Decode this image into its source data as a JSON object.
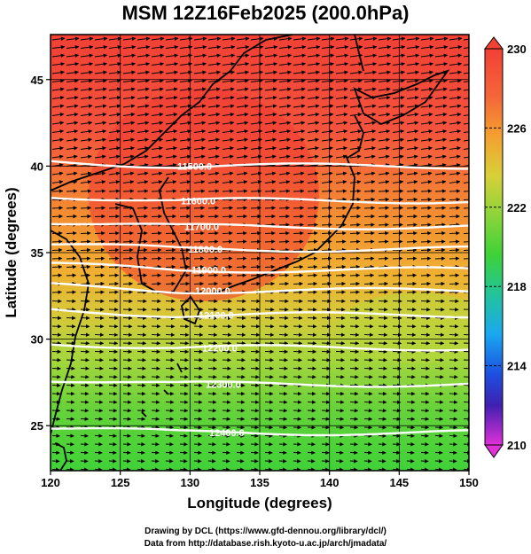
{
  "title": "MSM 12Z16Feb2025 (200.0hPa)",
  "chart_data": {
    "type": "heatmap",
    "xlabel": "Longitude (degrees)",
    "ylabel": "Latitude  (degrees)",
    "xlim": [
      120,
      150
    ],
    "ylim": [
      22.4,
      47.6
    ],
    "x_ticks": [
      "120",
      "125",
      "130",
      "135",
      "140",
      "145",
      "150"
    ],
    "y_ticks": [
      "25",
      "30",
      "35",
      "40",
      "45"
    ],
    "colorbar": {
      "range": [
        210,
        230
      ],
      "tick_labels": [
        "230",
        "226",
        "222",
        "218",
        "214",
        "210"
      ],
      "position": "right"
    },
    "field": "temperature shading with wind vectors",
    "contours": [
      {
        "label": "11500.0",
        "lat": 40.0
      },
      {
        "label": "11600.0",
        "lat": 38.0
      },
      {
        "label": "11700.0",
        "lat": 36.5
      },
      {
        "label": "11800.0",
        "lat": 35.2
      },
      {
        "label": "11900.0",
        "lat": 34.0
      },
      {
        "label": "12000.0",
        "lat": 32.8
      },
      {
        "label": "12100.0",
        "lat": 31.4
      },
      {
        "label": "12200.0",
        "lat": 29.5
      },
      {
        "label": "12300.0",
        "lat": 27.4
      },
      {
        "label": "12400.0",
        "lat": 24.6
      }
    ]
  },
  "footer": {
    "line1": "Drawing by DCL (https://www.gfd-dennou.org/library/dcl/)",
    "line2": "Data from http://database.rish.kyoto-u.ac.jp/arch/jmadata/"
  }
}
